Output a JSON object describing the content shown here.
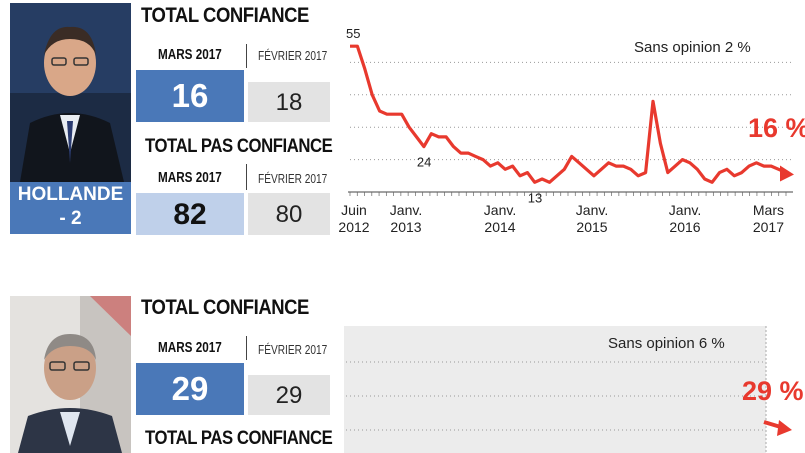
{
  "colors": {
    "accent_blue": "#4a78b8",
    "light_blue": "#bfd0ea",
    "gray_box": "#e3e3e3",
    "series_red": "#e8392e"
  },
  "panels": [
    {
      "person": "HOLLANDE",
      "change": "- 2",
      "confiance_title": "TOTAL CONFIANCE",
      "current_label": "MARS 2017",
      "previous_label": "FÉVRIER 2017",
      "confiance_current": "16",
      "confiance_previous": "18",
      "pas_confiance_title": "TOTAL PAS CONFIANCE",
      "pas_current_label": "MARS 2017",
      "pas_previous_label": "FÉVRIER 2017",
      "pas_confiance_current": "82",
      "pas_confiance_previous": "80",
      "sans_opinion": "Sans opinion 2 %",
      "final_label": "16 %"
    },
    {
      "confiance_title": "TOTAL CONFIANCE",
      "current_label": "MARS 2017",
      "previous_label": "FÉVRIER 2017",
      "confiance_current": "29",
      "confiance_previous": "29",
      "pas_confiance_title": "TOTAL PAS CONFIANCE",
      "sans_opinion": "Sans opinion 6 %",
      "final_label": "29 %"
    }
  ],
  "chart_data": [
    {
      "type": "line",
      "series": [
        {
          "values": [
            55,
            55,
            48,
            40,
            35,
            34,
            34,
            34,
            30,
            27,
            24,
            28,
            27,
            27,
            24,
            22,
            22,
            21,
            20,
            18,
            19,
            17,
            18,
            15,
            16,
            13,
            14,
            13,
            15,
            17,
            21,
            19,
            17,
            15,
            17,
            19,
            18,
            18,
            17,
            15,
            16,
            38,
            25,
            16,
            18,
            20,
            19,
            17,
            14,
            13,
            16,
            17,
            15,
            16,
            18,
            19,
            18,
            18,
            17,
            16
          ]
        }
      ],
      "x_tick_labels": [
        {
          "line1": "Juin",
          "line2": "2012"
        },
        {
          "line1": "Janv.",
          "line2": "2013"
        },
        {
          "line1": "Janv.",
          "line2": "2014"
        },
        {
          "line1": "Janv.",
          "line2": "2015"
        },
        {
          "line1": "Janv.",
          "line2": "2016"
        },
        {
          "line1": "Mars",
          "line2": "2017"
        }
      ],
      "annotations": [
        {
          "text": "55",
          "value": 55
        },
        {
          "text": "24",
          "value": 24
        },
        {
          "text": "13",
          "value": 13
        }
      ],
      "ylim": [
        10,
        60
      ],
      "grid": "horizontal dotted"
    },
    {
      "type": "line",
      "series": [],
      "ylim": [
        10,
        60
      ],
      "grid": "horizontal dotted"
    }
  ]
}
